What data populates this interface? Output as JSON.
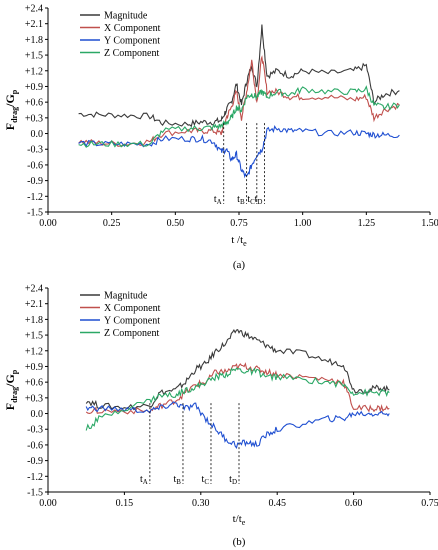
{
  "chart_data": [
    {
      "type": "line",
      "caption": "(a)",
      "ylabel_main": "F",
      "ylabel_sub": "drag",
      "ylabel_tail": "/G",
      "ylabel_tail_sub": "p",
      "xlabel_main": "t /t",
      "xlabel_sub": "e",
      "xlim": [
        0,
        1.5
      ],
      "ylim": [
        -1.5,
        2.4
      ],
      "xticks": [
        "0.00",
        "0.25",
        "0.50",
        "0.75",
        "1.00",
        "1.25",
        "1.50"
      ],
      "yticks": [
        "-1.5",
        "-1.2",
        "-0.9",
        "-0.6",
        "-0.3",
        "0.0",
        "+0.3",
        "+0.6",
        "+0.9",
        "+1.2",
        "+1.5",
        "+1.8",
        "+2.1",
        "+2.4"
      ],
      "legend_position": "top-left",
      "markers": [
        {
          "label": "t",
          "sub": "A",
          "x": 0.69
        },
        {
          "label": "t",
          "sub": "B",
          "x": 0.78
        },
        {
          "label": "t",
          "sub": "C",
          "x": 0.82
        },
        {
          "label": "t",
          "sub": "D",
          "x": 0.85
        }
      ],
      "series": [
        {
          "name": "Magnitude",
          "color": "#3a3a3a",
          "points": [
            [
              0.12,
              0.38
            ],
            [
              0.2,
              0.36
            ],
            [
              0.3,
              0.35
            ],
            [
              0.4,
              0.33
            ],
            [
              0.45,
              0.2
            ],
            [
              0.55,
              0.18
            ],
            [
              0.6,
              0.22
            ],
            [
              0.65,
              0.22
            ],
            [
              0.68,
              0.25
            ],
            [
              0.7,
              0.45
            ],
            [
              0.72,
              0.6
            ],
            [
              0.74,
              0.95
            ],
            [
              0.76,
              0.55
            ],
            [
              0.78,
              1.0
            ],
            [
              0.8,
              1.3
            ],
            [
              0.82,
              0.9
            ],
            [
              0.84,
              2.05
            ],
            [
              0.86,
              1.1
            ],
            [
              0.9,
              1.2
            ],
            [
              0.95,
              1.1
            ],
            [
              1.0,
              1.2
            ],
            [
              1.1,
              1.15
            ],
            [
              1.2,
              1.2
            ],
            [
              1.25,
              1.3
            ],
            [
              1.28,
              0.6
            ],
            [
              1.32,
              0.75
            ],
            [
              1.38,
              0.82
            ]
          ]
        },
        {
          "name": "X Component",
          "color": "#c0504d",
          "points": [
            [
              0.12,
              -0.15
            ],
            [
              0.2,
              -0.18
            ],
            [
              0.3,
              -0.2
            ],
            [
              0.4,
              -0.15
            ],
            [
              0.45,
              0.0
            ],
            [
              0.55,
              0.05
            ],
            [
              0.6,
              0.05
            ],
            [
              0.65,
              0.05
            ],
            [
              0.68,
              0.0
            ],
            [
              0.7,
              0.3
            ],
            [
              0.72,
              0.5
            ],
            [
              0.74,
              0.8
            ],
            [
              0.76,
              0.3
            ],
            [
              0.78,
              0.8
            ],
            [
              0.8,
              1.4
            ],
            [
              0.82,
              0.6
            ],
            [
              0.84,
              1.5
            ],
            [
              0.86,
              0.8
            ],
            [
              0.9,
              0.8
            ],
            [
              0.95,
              0.7
            ],
            [
              1.0,
              0.7
            ],
            [
              1.1,
              0.7
            ],
            [
              1.2,
              0.65
            ],
            [
              1.25,
              0.7
            ],
            [
              1.28,
              0.3
            ],
            [
              1.32,
              0.45
            ],
            [
              1.38,
              0.55
            ]
          ]
        },
        {
          "name": "Y Component",
          "color": "#1f4fd1",
          "points": [
            [
              0.12,
              -0.18
            ],
            [
              0.2,
              -0.2
            ],
            [
              0.3,
              -0.2
            ],
            [
              0.4,
              -0.2
            ],
            [
              0.45,
              -0.1
            ],
            [
              0.55,
              -0.1
            ],
            [
              0.6,
              -0.1
            ],
            [
              0.65,
              -0.15
            ],
            [
              0.68,
              -0.35
            ],
            [
              0.7,
              -0.3
            ],
            [
              0.72,
              -0.5
            ],
            [
              0.74,
              -0.4
            ],
            [
              0.76,
              -0.7
            ],
            [
              0.78,
              -0.85
            ],
            [
              0.8,
              -0.6
            ],
            [
              0.82,
              -0.4
            ],
            [
              0.84,
              -0.3
            ],
            [
              0.86,
              0.05
            ],
            [
              0.9,
              0.1
            ],
            [
              0.95,
              0.05
            ],
            [
              1.0,
              0.05
            ],
            [
              1.1,
              0.0
            ],
            [
              1.2,
              0.02
            ],
            [
              1.25,
              0.0
            ],
            [
              1.28,
              -0.02
            ],
            [
              1.32,
              -0.03
            ],
            [
              1.38,
              -0.03
            ]
          ]
        },
        {
          "name": "Z Component",
          "color": "#2ba866",
          "points": [
            [
              0.12,
              -0.2
            ],
            [
              0.2,
              -0.2
            ],
            [
              0.3,
              -0.2
            ],
            [
              0.4,
              -0.2
            ],
            [
              0.45,
              0.05
            ],
            [
              0.55,
              0.1
            ],
            [
              0.6,
              0.1
            ],
            [
              0.65,
              0.12
            ],
            [
              0.68,
              0.15
            ],
            [
              0.7,
              0.2
            ],
            [
              0.72,
              0.3
            ],
            [
              0.74,
              0.5
            ],
            [
              0.76,
              0.45
            ],
            [
              0.78,
              0.7
            ],
            [
              0.8,
              0.75
            ],
            [
              0.82,
              0.7
            ],
            [
              0.84,
              0.8
            ],
            [
              0.86,
              0.7
            ],
            [
              0.9,
              0.8
            ],
            [
              0.95,
              0.75
            ],
            [
              1.0,
              0.85
            ],
            [
              1.1,
              0.8
            ],
            [
              1.2,
              0.8
            ],
            [
              1.25,
              0.85
            ],
            [
              1.28,
              0.55
            ],
            [
              1.32,
              0.5
            ],
            [
              1.38,
              0.55
            ]
          ]
        }
      ]
    },
    {
      "type": "line",
      "caption": "(b)",
      "ylabel_main": "F",
      "ylabel_sub": "drag",
      "ylabel_tail": "/G",
      "ylabel_tail_sub": "p",
      "xlabel_main": "t/t",
      "xlabel_sub": "e",
      "xlim": [
        0,
        0.75
      ],
      "ylim": [
        -1.5,
        2.4
      ],
      "xticks": [
        "0.00",
        "0.15",
        "0.30",
        "0.45",
        "0.60",
        "0.75"
      ],
      "yticks": [
        "-1.5",
        "-1.2",
        "-0.9",
        "-0.6",
        "-0.3",
        "0.0",
        "+0.3",
        "+0.6",
        "+0.9",
        "+1.2",
        "+1.5",
        "+1.8",
        "+2.1",
        "+2.4"
      ],
      "legend_position": "top-left",
      "markers": [
        {
          "label": "t",
          "sub": "A",
          "x": 0.2
        },
        {
          "label": "t",
          "sub": "B",
          "x": 0.265
        },
        {
          "label": "t",
          "sub": "C",
          "x": 0.32
        },
        {
          "label": "t",
          "sub": "D",
          "x": 0.375
        }
      ],
      "series": [
        {
          "name": "Magnitude",
          "color": "#3a3a3a",
          "points": [
            [
              0.075,
              0.25
            ],
            [
              0.1,
              0.15
            ],
            [
              0.15,
              0.12
            ],
            [
              0.2,
              0.15
            ],
            [
              0.22,
              0.4
            ],
            [
              0.25,
              0.45
            ],
            [
              0.27,
              0.6
            ],
            [
              0.29,
              0.85
            ],
            [
              0.31,
              0.95
            ],
            [
              0.33,
              1.2
            ],
            [
              0.35,
              1.35
            ],
            [
              0.37,
              1.6
            ],
            [
              0.39,
              1.5
            ],
            [
              0.41,
              1.4
            ],
            [
              0.43,
              1.3
            ],
            [
              0.45,
              1.2
            ],
            [
              0.5,
              1.15
            ],
            [
              0.55,
              1.0
            ],
            [
              0.58,
              0.95
            ],
            [
              0.6,
              0.45
            ],
            [
              0.63,
              0.45
            ],
            [
              0.65,
              0.5
            ],
            [
              0.67,
              0.45
            ]
          ]
        },
        {
          "name": "X Component",
          "color": "#c0504d",
          "points": [
            [
              0.075,
              0.05
            ],
            [
              0.1,
              0.05
            ],
            [
              0.15,
              0.05
            ],
            [
              0.2,
              0.05
            ],
            [
              0.22,
              0.15
            ],
            [
              0.25,
              0.25
            ],
            [
              0.27,
              0.4
            ],
            [
              0.29,
              0.55
            ],
            [
              0.31,
              0.6
            ],
            [
              0.33,
              0.8
            ],
            [
              0.35,
              0.8
            ],
            [
              0.37,
              0.9
            ],
            [
              0.39,
              0.9
            ],
            [
              0.41,
              0.85
            ],
            [
              0.43,
              0.8
            ],
            [
              0.45,
              0.75
            ],
            [
              0.5,
              0.7
            ],
            [
              0.55,
              0.65
            ],
            [
              0.58,
              0.6
            ],
            [
              0.6,
              0.1
            ],
            [
              0.63,
              0.1
            ],
            [
              0.65,
              0.1
            ],
            [
              0.67,
              0.1
            ]
          ]
        },
        {
          "name": "Y Component",
          "color": "#1f4fd1",
          "points": [
            [
              0.075,
              0.1
            ],
            [
              0.1,
              0.1
            ],
            [
              0.15,
              0.08
            ],
            [
              0.2,
              0.05
            ],
            [
              0.22,
              0.1
            ],
            [
              0.25,
              0.2
            ],
            [
              0.27,
              0.1
            ],
            [
              0.29,
              0.15
            ],
            [
              0.31,
              -0.1
            ],
            [
              0.33,
              -0.3
            ],
            [
              0.35,
              -0.5
            ],
            [
              0.37,
              -0.6
            ],
            [
              0.39,
              -0.55
            ],
            [
              0.41,
              -0.6
            ],
            [
              0.43,
              -0.4
            ],
            [
              0.45,
              -0.3
            ],
            [
              0.5,
              -0.2
            ],
            [
              0.55,
              -0.1
            ],
            [
              0.58,
              -0.1
            ],
            [
              0.6,
              0.0
            ],
            [
              0.63,
              0.0
            ],
            [
              0.65,
              0.0
            ],
            [
              0.67,
              0.0
            ]
          ]
        },
        {
          "name": "Z Component",
          "color": "#2ba866",
          "points": [
            [
              0.075,
              -0.3
            ],
            [
              0.1,
              -0.1
            ],
            [
              0.15,
              0.1
            ],
            [
              0.2,
              0.25
            ],
            [
              0.22,
              0.35
            ],
            [
              0.25,
              0.35
            ],
            [
              0.27,
              0.45
            ],
            [
              0.29,
              0.5
            ],
            [
              0.31,
              0.6
            ],
            [
              0.33,
              0.7
            ],
            [
              0.35,
              0.75
            ],
            [
              0.37,
              0.85
            ],
            [
              0.39,
              0.8
            ],
            [
              0.41,
              0.8
            ],
            [
              0.43,
              0.7
            ],
            [
              0.45,
              0.7
            ],
            [
              0.5,
              0.65
            ],
            [
              0.55,
              0.6
            ],
            [
              0.58,
              0.55
            ],
            [
              0.6,
              0.4
            ],
            [
              0.63,
              0.4
            ],
            [
              0.65,
              0.4
            ],
            [
              0.67,
              0.4
            ]
          ]
        }
      ]
    }
  ]
}
